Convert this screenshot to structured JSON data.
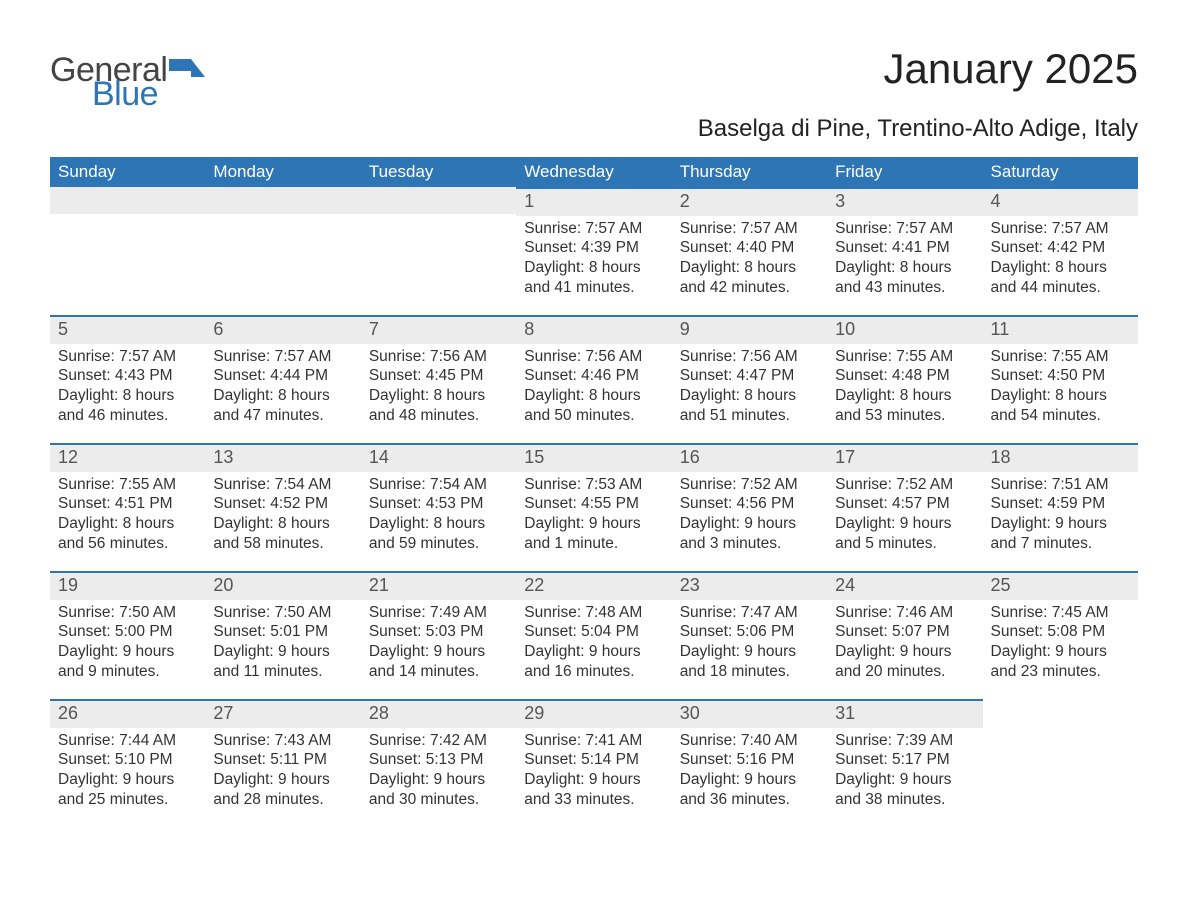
{
  "logo": {
    "part1": "General",
    "part2": "Blue",
    "color1": "#444444",
    "color2": "#2e75b6"
  },
  "title": "January 2025",
  "location": "Baselga di Pine, Trentino-Alto Adige, Italy",
  "colors": {
    "header_bg": "#2e75b6",
    "header_text": "#ffffff",
    "daynum_bg": "#ececec",
    "daynum_border": "#2e75b6",
    "daynum_text": "#555555",
    "body_text": "#333333",
    "page_bg": "#ffffff"
  },
  "fonts": {
    "title_size": 42,
    "location_size": 24,
    "header_size": 17,
    "daynum_size": 18,
    "body_size": 15.5
  },
  "weekdays": [
    "Sunday",
    "Monday",
    "Tuesday",
    "Wednesday",
    "Thursday",
    "Friday",
    "Saturday"
  ],
  "weeks": [
    [
      null,
      null,
      null,
      {
        "n": "1",
        "sunrise": "Sunrise: 7:57 AM",
        "sunset": "Sunset: 4:39 PM",
        "day1": "Daylight: 8 hours",
        "day2": "and 41 minutes."
      },
      {
        "n": "2",
        "sunrise": "Sunrise: 7:57 AM",
        "sunset": "Sunset: 4:40 PM",
        "day1": "Daylight: 8 hours",
        "day2": "and 42 minutes."
      },
      {
        "n": "3",
        "sunrise": "Sunrise: 7:57 AM",
        "sunset": "Sunset: 4:41 PM",
        "day1": "Daylight: 8 hours",
        "day2": "and 43 minutes."
      },
      {
        "n": "4",
        "sunrise": "Sunrise: 7:57 AM",
        "sunset": "Sunset: 4:42 PM",
        "day1": "Daylight: 8 hours",
        "day2": "and 44 minutes."
      }
    ],
    [
      {
        "n": "5",
        "sunrise": "Sunrise: 7:57 AM",
        "sunset": "Sunset: 4:43 PM",
        "day1": "Daylight: 8 hours",
        "day2": "and 46 minutes."
      },
      {
        "n": "6",
        "sunrise": "Sunrise: 7:57 AM",
        "sunset": "Sunset: 4:44 PM",
        "day1": "Daylight: 8 hours",
        "day2": "and 47 minutes."
      },
      {
        "n": "7",
        "sunrise": "Sunrise: 7:56 AM",
        "sunset": "Sunset: 4:45 PM",
        "day1": "Daylight: 8 hours",
        "day2": "and 48 minutes."
      },
      {
        "n": "8",
        "sunrise": "Sunrise: 7:56 AM",
        "sunset": "Sunset: 4:46 PM",
        "day1": "Daylight: 8 hours",
        "day2": "and 50 minutes."
      },
      {
        "n": "9",
        "sunrise": "Sunrise: 7:56 AM",
        "sunset": "Sunset: 4:47 PM",
        "day1": "Daylight: 8 hours",
        "day2": "and 51 minutes."
      },
      {
        "n": "10",
        "sunrise": "Sunrise: 7:55 AM",
        "sunset": "Sunset: 4:48 PM",
        "day1": "Daylight: 8 hours",
        "day2": "and 53 minutes."
      },
      {
        "n": "11",
        "sunrise": "Sunrise: 7:55 AM",
        "sunset": "Sunset: 4:50 PM",
        "day1": "Daylight: 8 hours",
        "day2": "and 54 minutes."
      }
    ],
    [
      {
        "n": "12",
        "sunrise": "Sunrise: 7:55 AM",
        "sunset": "Sunset: 4:51 PM",
        "day1": "Daylight: 8 hours",
        "day2": "and 56 minutes."
      },
      {
        "n": "13",
        "sunrise": "Sunrise: 7:54 AM",
        "sunset": "Sunset: 4:52 PM",
        "day1": "Daylight: 8 hours",
        "day2": "and 58 minutes."
      },
      {
        "n": "14",
        "sunrise": "Sunrise: 7:54 AM",
        "sunset": "Sunset: 4:53 PM",
        "day1": "Daylight: 8 hours",
        "day2": "and 59 minutes."
      },
      {
        "n": "15",
        "sunrise": "Sunrise: 7:53 AM",
        "sunset": "Sunset: 4:55 PM",
        "day1": "Daylight: 9 hours",
        "day2": "and 1 minute."
      },
      {
        "n": "16",
        "sunrise": "Sunrise: 7:52 AM",
        "sunset": "Sunset: 4:56 PM",
        "day1": "Daylight: 9 hours",
        "day2": "and 3 minutes."
      },
      {
        "n": "17",
        "sunrise": "Sunrise: 7:52 AM",
        "sunset": "Sunset: 4:57 PM",
        "day1": "Daylight: 9 hours",
        "day2": "and 5 minutes."
      },
      {
        "n": "18",
        "sunrise": "Sunrise: 7:51 AM",
        "sunset": "Sunset: 4:59 PM",
        "day1": "Daylight: 9 hours",
        "day2": "and 7 minutes."
      }
    ],
    [
      {
        "n": "19",
        "sunrise": "Sunrise: 7:50 AM",
        "sunset": "Sunset: 5:00 PM",
        "day1": "Daylight: 9 hours",
        "day2": "and 9 minutes."
      },
      {
        "n": "20",
        "sunrise": "Sunrise: 7:50 AM",
        "sunset": "Sunset: 5:01 PM",
        "day1": "Daylight: 9 hours",
        "day2": "and 11 minutes."
      },
      {
        "n": "21",
        "sunrise": "Sunrise: 7:49 AM",
        "sunset": "Sunset: 5:03 PM",
        "day1": "Daylight: 9 hours",
        "day2": "and 14 minutes."
      },
      {
        "n": "22",
        "sunrise": "Sunrise: 7:48 AM",
        "sunset": "Sunset: 5:04 PM",
        "day1": "Daylight: 9 hours",
        "day2": "and 16 minutes."
      },
      {
        "n": "23",
        "sunrise": "Sunrise: 7:47 AM",
        "sunset": "Sunset: 5:06 PM",
        "day1": "Daylight: 9 hours",
        "day2": "and 18 minutes."
      },
      {
        "n": "24",
        "sunrise": "Sunrise: 7:46 AM",
        "sunset": "Sunset: 5:07 PM",
        "day1": "Daylight: 9 hours",
        "day2": "and 20 minutes."
      },
      {
        "n": "25",
        "sunrise": "Sunrise: 7:45 AM",
        "sunset": "Sunset: 5:08 PM",
        "day1": "Daylight: 9 hours",
        "day2": "and 23 minutes."
      }
    ],
    [
      {
        "n": "26",
        "sunrise": "Sunrise: 7:44 AM",
        "sunset": "Sunset: 5:10 PM",
        "day1": "Daylight: 9 hours",
        "day2": "and 25 minutes."
      },
      {
        "n": "27",
        "sunrise": "Sunrise: 7:43 AM",
        "sunset": "Sunset: 5:11 PM",
        "day1": "Daylight: 9 hours",
        "day2": "and 28 minutes."
      },
      {
        "n": "28",
        "sunrise": "Sunrise: 7:42 AM",
        "sunset": "Sunset: 5:13 PM",
        "day1": "Daylight: 9 hours",
        "day2": "and 30 minutes."
      },
      {
        "n": "29",
        "sunrise": "Sunrise: 7:41 AM",
        "sunset": "Sunset: 5:14 PM",
        "day1": "Daylight: 9 hours",
        "day2": "and 33 minutes."
      },
      {
        "n": "30",
        "sunrise": "Sunrise: 7:40 AM",
        "sunset": "Sunset: 5:16 PM",
        "day1": "Daylight: 9 hours",
        "day2": "and 36 minutes."
      },
      {
        "n": "31",
        "sunrise": "Sunrise: 7:39 AM",
        "sunset": "Sunset: 5:17 PM",
        "day1": "Daylight: 9 hours",
        "day2": "and 38 minutes."
      },
      null
    ]
  ]
}
